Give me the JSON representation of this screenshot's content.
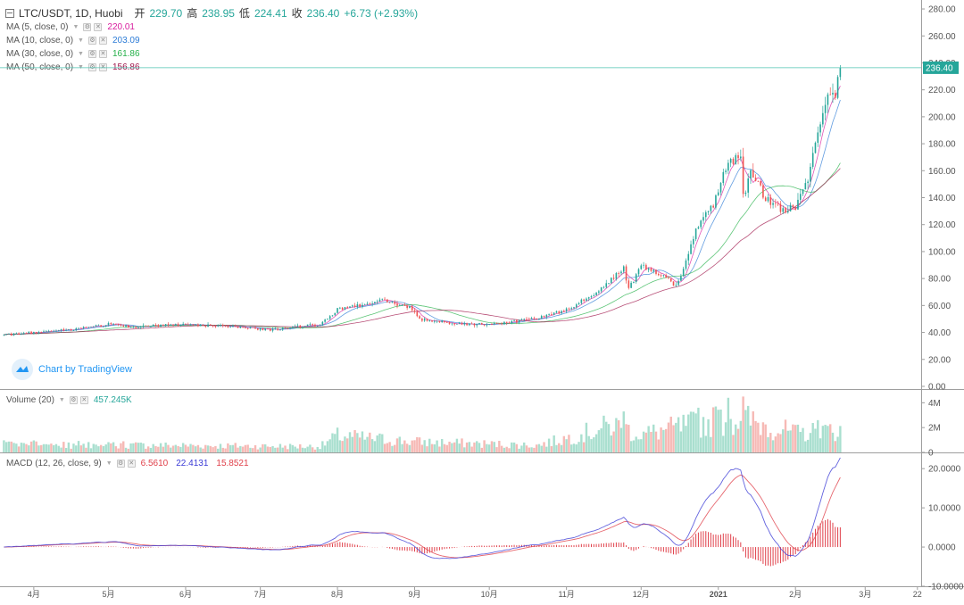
{
  "header": {
    "symbol": "LTC/USDT, 1D, Huobi",
    "open_label": "开",
    "open": "229.70",
    "high_label": "高",
    "high": "238.95",
    "low_label": "低",
    "low": "224.41",
    "close_label": "收",
    "close": "236.40",
    "change": "+6.73 (+2.93%)"
  },
  "indicators": [
    {
      "label": "MA (5, close, 0)",
      "value": "220.01",
      "color": "#d81b9d"
    },
    {
      "label": "MA (10, close, 0)",
      "value": "203.09",
      "color": "#2c7bd6"
    },
    {
      "label": "MA (30, close, 0)",
      "value": "161.86",
      "color": "#26b14a"
    },
    {
      "label": "MA (50, close, 0)",
      "value": "156.86",
      "color": "#a0154b"
    }
  ],
  "volume_legend": {
    "label": "Volume (20)",
    "value": "457.245K"
  },
  "macd_legend": {
    "label": "MACD (12, 26, close, 9)",
    "hist": "6.5610",
    "macd": "22.4131",
    "signal": "15.8521"
  },
  "branding": "Chart by TradingView",
  "colors": {
    "up": "#26a69a",
    "down": "#ef5350",
    "up_vol": "#a9dfcf",
    "down_vol": "#f6b9b5",
    "macd_line": "#3b3bd6",
    "signal_line": "#e0404a",
    "last_price_line": "#4fc3b0"
  },
  "chart_data": [
    {
      "type": "candlestick",
      "title": "LTC/USDT, 1D, Huobi",
      "y_axis_ticks": [
        "280.00",
        "260.00",
        "240.00",
        "220.00",
        "200.00",
        "180.00",
        "160.00",
        "140.00",
        "120.00",
        "100.00",
        "80.00",
        "60.00",
        "40.00",
        "20.00",
        "0.00"
      ],
      "ylim": [
        -2,
        284
      ],
      "last_price": "236.40",
      "x_tick_labels": [
        "4月",
        "5月",
        "6月",
        "7月",
        "8月",
        "9月",
        "10月",
        "11月",
        "12月",
        "2021",
        "2月",
        "3月",
        "22"
      ],
      "anchors": [
        {
          "date": "2020-03-20",
          "close": 38
        },
        {
          "date": "2020-04-01",
          "close": 40
        },
        {
          "date": "2020-04-15",
          "close": 42
        },
        {
          "date": "2020-05-01",
          "close": 46
        },
        {
          "date": "2020-05-12",
          "close": 44
        },
        {
          "date": "2020-06-01",
          "close": 46
        },
        {
          "date": "2020-06-20",
          "close": 44
        },
        {
          "date": "2020-07-05",
          "close": 42
        },
        {
          "date": "2020-07-25",
          "close": 46
        },
        {
          "date": "2020-08-01",
          "close": 57
        },
        {
          "date": "2020-08-10",
          "close": 60
        },
        {
          "date": "2020-08-18",
          "close": 64
        },
        {
          "date": "2020-08-30",
          "close": 59
        },
        {
          "date": "2020-09-03",
          "close": 50
        },
        {
          "date": "2020-09-20",
          "close": 46
        },
        {
          "date": "2020-10-01",
          "close": 46
        },
        {
          "date": "2020-10-20",
          "close": 50
        },
        {
          "date": "2020-11-01",
          "close": 57
        },
        {
          "date": "2020-11-12",
          "close": 68
        },
        {
          "date": "2020-11-24",
          "close": 88
        },
        {
          "date": "2020-11-26",
          "close": 72
        },
        {
          "date": "2020-12-01",
          "close": 90
        },
        {
          "date": "2020-12-10",
          "close": 82
        },
        {
          "date": "2020-12-15",
          "close": 74
        },
        {
          "date": "2020-12-20",
          "close": 98
        },
        {
          "date": "2020-12-24",
          "close": 120
        },
        {
          "date": "2020-12-30",
          "close": 135
        },
        {
          "date": "2021-01-05",
          "close": 168
        },
        {
          "date": "2021-01-10",
          "close": 170
        },
        {
          "date": "2021-01-11",
          "close": 140
        },
        {
          "date": "2021-01-14",
          "close": 158
        },
        {
          "date": "2021-01-20",
          "close": 140
        },
        {
          "date": "2021-01-27",
          "close": 130
        },
        {
          "date": "2021-02-01",
          "close": 134
        },
        {
          "date": "2021-02-06",
          "close": 155
        },
        {
          "date": "2021-02-10",
          "close": 185
        },
        {
          "date": "2021-02-14",
          "close": 220
        },
        {
          "date": "2021-02-17",
          "close": 215
        },
        {
          "date": "2021-02-19",
          "close": 236.4
        }
      ]
    },
    {
      "type": "bar",
      "title": "Volume (20)",
      "y_axis_ticks": [
        "4M",
        "2M",
        "0"
      ],
      "ylim": [
        0,
        4.6
      ],
      "unit": "M",
      "level_anchors": [
        {
          "date": "2020-03-20",
          "value": 0.7
        },
        {
          "date": "2020-07-25",
          "value": 0.5
        },
        {
          "date": "2020-08-01",
          "value": 1.4
        },
        {
          "date": "2020-09-01",
          "value": 0.9
        },
        {
          "date": "2020-10-20",
          "value": 0.6
        },
        {
          "date": "2020-11-01",
          "value": 1.2
        },
        {
          "date": "2020-11-20",
          "value": 2.3
        },
        {
          "date": "2020-12-01",
          "value": 1.5
        },
        {
          "date": "2020-12-20",
          "value": 2.3
        },
        {
          "date": "2021-01-10",
          "value": 2.9
        },
        {
          "date": "2021-02-01",
          "value": 1.6
        },
        {
          "date": "2021-02-19",
          "value": 1.9
        }
      ],
      "peaks": [
        {
          "date": "2021-01-05",
          "value": 4.4
        },
        {
          "date": "2021-01-11",
          "value": 4.5
        },
        {
          "date": "2020-12-31",
          "value": 3.7
        },
        {
          "date": "2020-11-24",
          "value": 3.3
        },
        {
          "date": "2020-12-24",
          "value": 3.6
        },
        {
          "date": "2021-02-10",
          "value": 2.6
        }
      ]
    },
    {
      "type": "line",
      "title": "MACD (12, 26, close, 9)",
      "y_axis_ticks": [
        "20.0000",
        "10.0000",
        "0.0000",
        "-10.0000"
      ],
      "ylim": [
        -10,
        23
      ]
    }
  ]
}
